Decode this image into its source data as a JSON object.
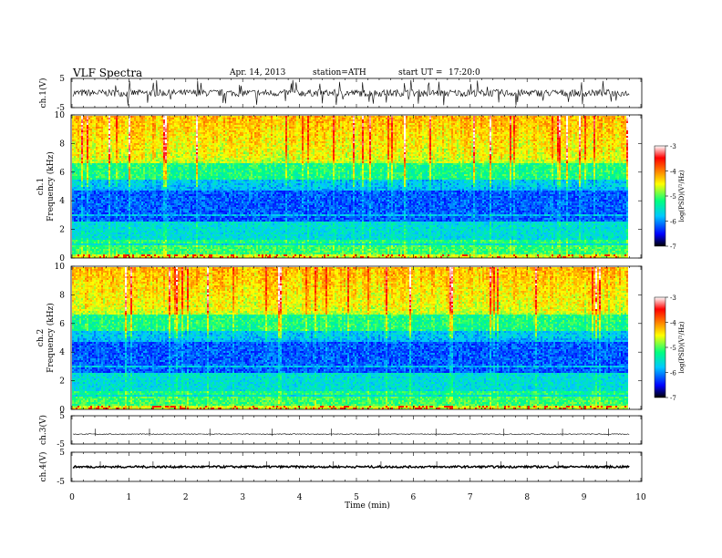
{
  "header": {
    "title": "VLF Spectra",
    "date": "Apr. 14, 2013",
    "station": "station=ATH",
    "start_label": "start UT =",
    "start_value": "17:20:0"
  },
  "chart_data": [
    {
      "type": "line",
      "panel": "ch1-waveform",
      "ylabel": "ch.1(V)",
      "ylim": [
        -5,
        5
      ],
      "y_ticks": [
        "5",
        "-5"
      ],
      "baseline": 0,
      "noise_amplitude": 1.2,
      "color": "#000000"
    },
    {
      "type": "heatmap",
      "panel": "ch1-spectrogram",
      "ylabel_top": "ch.1",
      "ylabel": "Frequency (kHz)",
      "ylim": [
        0,
        10
      ],
      "y_ticks": [
        "0",
        "2",
        "4",
        "6",
        "8",
        "10"
      ],
      "colorbar_label": "log(PSD)(V²/Hz)",
      "colorbar_range": [
        -7,
        -3
      ],
      "colorbar_ticks": [
        "-3",
        "-4",
        "-5",
        "-6",
        "-7"
      ]
    },
    {
      "type": "heatmap",
      "panel": "ch2-spectrogram",
      "ylabel_top": "ch.2",
      "ylabel": "Frequency (kHz)",
      "ylim": [
        0,
        10
      ],
      "y_ticks": [
        "0",
        "2",
        "4",
        "6",
        "8",
        "10"
      ],
      "colorbar_label": "log(PSD)(V²/Hz)",
      "colorbar_range": [
        -7,
        -3
      ],
      "colorbar_ticks": [
        "-3",
        "-4",
        "-5",
        "-6",
        "-7"
      ]
    },
    {
      "type": "line",
      "panel": "ch3-waveform",
      "ylabel": "ch.3(V)",
      "ylim": [
        -5,
        5
      ],
      "y_ticks": [
        "5",
        "-5"
      ],
      "baseline": -1.5,
      "noise_amplitude": 0.15,
      "color": "#000000"
    },
    {
      "type": "line",
      "panel": "ch4-waveform",
      "ylabel": "ch.4(V)",
      "ylim": [
        -5,
        5
      ],
      "y_ticks": [
        "5",
        "-5"
      ],
      "baseline": 0,
      "noise_amplitude": 0.35,
      "color": "#000000"
    },
    {
      "type": "axis",
      "panel": "time-axis",
      "xlabel": "Time (min)",
      "xlim": [
        0,
        10
      ],
      "x_ticks": [
        "0",
        "1",
        "2",
        "3",
        "4",
        "5",
        "6",
        "7",
        "8",
        "9",
        "10"
      ],
      "data_end": 9.8
    }
  ],
  "colors": {
    "scale": [
      "#000000",
      "#0000ff",
      "#00c8ff",
      "#00ff80",
      "#ffff00",
      "#ff8000",
      "#ff0000",
      "#ffffff"
    ]
  }
}
